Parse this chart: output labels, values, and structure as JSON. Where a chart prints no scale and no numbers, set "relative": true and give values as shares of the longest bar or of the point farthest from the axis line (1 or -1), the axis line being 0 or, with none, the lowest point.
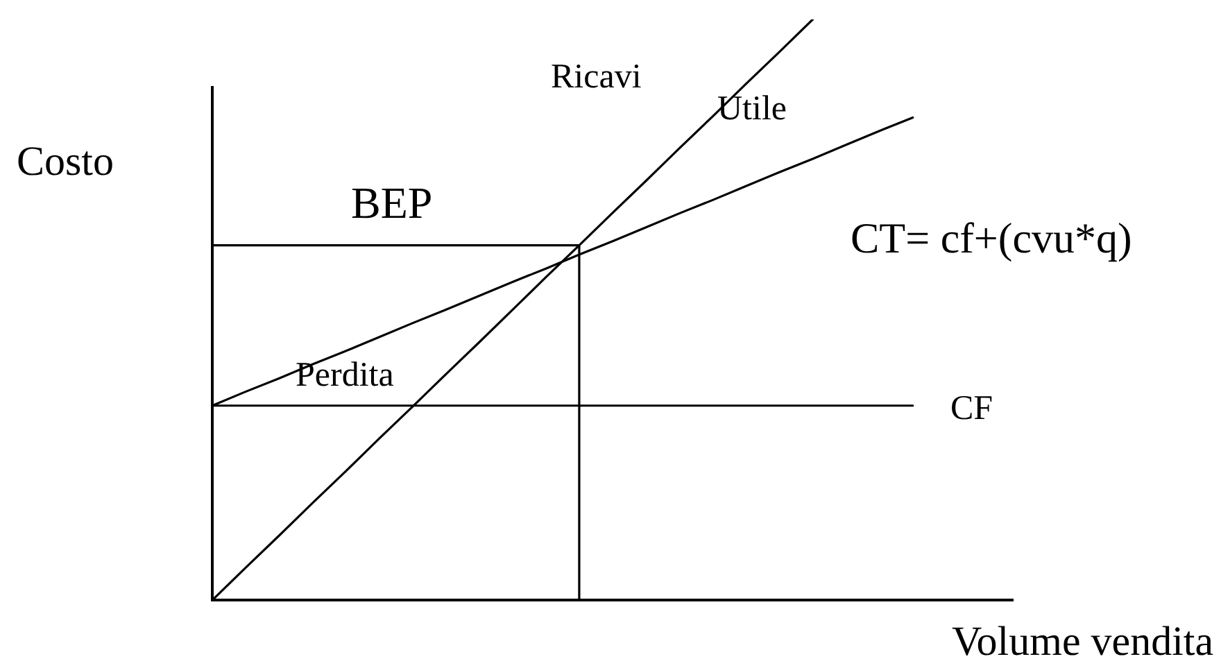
{
  "chart_data": {
    "type": "line",
    "relative": true,
    "xlabel": "Volume vendita",
    "ylabel": "Costo",
    "categories": [
      null,
      null,
      null,
      null,
      null,
      null,
      null,
      null,
      null,
      null,
      null,
      null,
      null,
      null,
      null,
      null,
      null,
      null,
      null,
      null,
      null,
      null,
      null,
      null,
      null
    ],
    "series": [
      {
        "name": "Ricavi",
        "color": "#000000",
        "values": [
          0,
          0.056,
          0.111,
          0.167,
          0.222,
          0.278,
          0.333,
          0.389,
          0.444,
          0.5,
          0.556,
          0.611,
          0.667,
          0.722,
          0.778,
          0.833,
          0.889,
          0.944,
          1,
          null,
          null,
          null,
          null,
          null,
          null
        ]
      },
      {
        "name": "CT= cf+(cvu*q)",
        "color": "#000000",
        "values": [
          0.335,
          0.359,
          0.382,
          0.406,
          0.429,
          0.453,
          0.477,
          0.5,
          0.524,
          0.548,
          0.571,
          0.595,
          0.618,
          0.642,
          0.666,
          0.689,
          0.713,
          0.737,
          0.76,
          0.784,
          0.808,
          0.831,
          null,
          null,
          null
        ]
      },
      {
        "name": "CF",
        "color": "#000000",
        "values": [
          0.335,
          0.335,
          0.335,
          0.335,
          0.335,
          0.335,
          0.335,
          0.335,
          0.335,
          0.335,
          0.335,
          0.335,
          0.335,
          0.335,
          0.335,
          0.335,
          0.335,
          0.335,
          0.335,
          0.335,
          0.335,
          0.335,
          null,
          null,
          null
        ]
      },
      {
        "name": "BEP",
        "type": "step",
        "color": "#000000",
        "values": [
          0.611,
          0.611,
          0.611,
          0.611,
          0.611,
          0.611,
          0.611,
          0.611,
          0.611,
          0.611,
          0.611,
          0.611,
          0,
          null,
          null,
          null,
          null,
          null,
          null,
          null,
          null,
          null,
          null,
          null,
          null
        ]
      }
    ],
    "annotations": [
      "Utile",
      "Perdita"
    ]
  }
}
